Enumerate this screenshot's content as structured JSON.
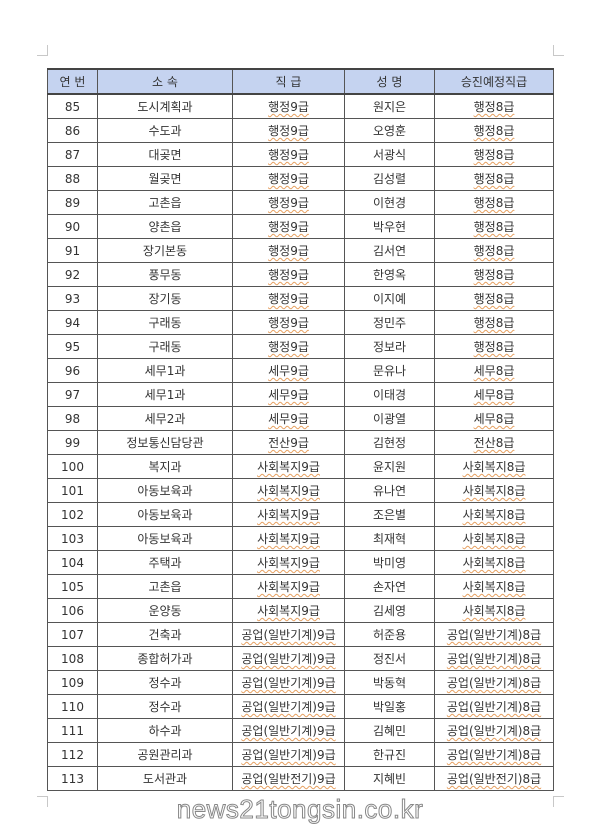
{
  "headers": [
    "연 번",
    "소 속",
    "직 급",
    "성 명",
    "승진예정직급"
  ],
  "rows": [
    [
      "85",
      "도시계획과",
      "행정9급",
      "원지은",
      "행정8급"
    ],
    [
      "86",
      "수도과",
      "행정9급",
      "오영훈",
      "행정8급"
    ],
    [
      "87",
      "대곶면",
      "행정9급",
      "서광식",
      "행정8급"
    ],
    [
      "88",
      "월곶면",
      "행정9급",
      "김성렬",
      "행정8급"
    ],
    [
      "89",
      "고촌읍",
      "행정9급",
      "이현경",
      "행정8급"
    ],
    [
      "90",
      "양촌읍",
      "행정9급",
      "박우현",
      "행정8급"
    ],
    [
      "91",
      "장기본동",
      "행정9급",
      "김서연",
      "행정8급"
    ],
    [
      "92",
      "풍무동",
      "행정9급",
      "한영옥",
      "행정8급"
    ],
    [
      "93",
      "장기동",
      "행정9급",
      "이지예",
      "행정8급"
    ],
    [
      "94",
      "구래동",
      "행정9급",
      "정민주",
      "행정8급"
    ],
    [
      "95",
      "구래동",
      "행정9급",
      "정보라",
      "행정8급"
    ],
    [
      "96",
      "세무1과",
      "세무9급",
      "문유나",
      "세무8급"
    ],
    [
      "97",
      "세무1과",
      "세무9급",
      "이태경",
      "세무8급"
    ],
    [
      "98",
      "세무2과",
      "세무9급",
      "이광열",
      "세무8급"
    ],
    [
      "99",
      "정보통신담당관",
      "전산9급",
      "김현정",
      "전산8급"
    ],
    [
      "100",
      "복지과",
      "사회복지9급",
      "윤지원",
      "사회복지8급"
    ],
    [
      "101",
      "아동보육과",
      "사회복지9급",
      "유나연",
      "사회복지8급"
    ],
    [
      "102",
      "아동보육과",
      "사회복지9급",
      "조은별",
      "사회복지8급"
    ],
    [
      "103",
      "아동보육과",
      "사회복지9급",
      "최재혁",
      "사회복지8급"
    ],
    [
      "104",
      "주택과",
      "사회복지9급",
      "박미영",
      "사회복지8급"
    ],
    [
      "105",
      "고촌읍",
      "사회복지9급",
      "손자연",
      "사회복지8급"
    ],
    [
      "106",
      "운양동",
      "사회복지9급",
      "김세영",
      "사회복지8급"
    ],
    [
      "107",
      "건축과",
      "공업(일반기계)9급",
      "허준용",
      "공업(일반기계)8급"
    ],
    [
      "108",
      "종합허가과",
      "공업(일반기계)9급",
      "정진서",
      "공업(일반기계)8급"
    ],
    [
      "109",
      "정수과",
      "공업(일반기계)9급",
      "박동혁",
      "공업(일반기계)8급"
    ],
    [
      "110",
      "정수과",
      "공업(일반기계)9급",
      "박일홍",
      "공업(일반기계)8급"
    ],
    [
      "111",
      "하수과",
      "공업(일반기계)9급",
      "김혜민",
      "공업(일반기계)8급"
    ],
    [
      "112",
      "공원관리과",
      "공업(일반기계)9급",
      "한규진",
      "공업(일반기계)8급"
    ],
    [
      "113",
      "도서관과",
      "공업(일반전기)9급",
      "지혜빈",
      "공업(일반전기)8급"
    ]
  ],
  "watermark": "news21tongsin.co.kr",
  "colors": {
    "header_bg": "#c5d3f0",
    "border": "#555555"
  }
}
